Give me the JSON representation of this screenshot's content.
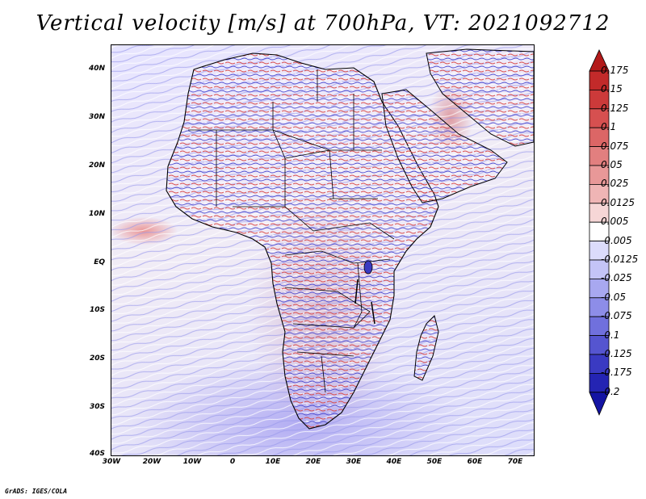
{
  "title": "Vertical velocity [m/s] at 700hPa, VT: 2021092712",
  "credit": "GrADS: IGES/COLA",
  "map": {
    "region": "Africa",
    "lon_ticks": [
      "30W",
      "20W",
      "10W",
      "0",
      "10E",
      "20E",
      "30E",
      "40E",
      "50E",
      "60E",
      "70E"
    ],
    "lat_ticks": [
      "40N",
      "30N",
      "20N",
      "10N",
      "EQ",
      "10S",
      "20S",
      "30S",
      "40S"
    ],
    "lon_range": [
      -30,
      75
    ],
    "lat_range": [
      -40,
      45
    ]
  },
  "colorbar": {
    "levels": [
      "0.175",
      "0.15",
      "0.125",
      "0.1",
      "0.075",
      "0.05",
      "0.025",
      "0.0125",
      "0.005",
      "-0.005",
      "-0.0125",
      "-0.025",
      "-0.05",
      "-0.075",
      "-0.1",
      "-0.125",
      "-0.175",
      "-0.2"
    ],
    "colors": [
      "#b31a1a",
      "#c22a2a",
      "#cc3a3a",
      "#d65050",
      "#dc6666",
      "#e27f7f",
      "#e89898",
      "#efb5b5",
      "#f6d6d6",
      "#ffffff",
      "#dcdcfb",
      "#c4c4f7",
      "#a8a8f0",
      "#8d8de8",
      "#7070dd",
      "#5555d0",
      "#3a3ac2",
      "#2424b3",
      "#1414a3"
    ]
  }
}
